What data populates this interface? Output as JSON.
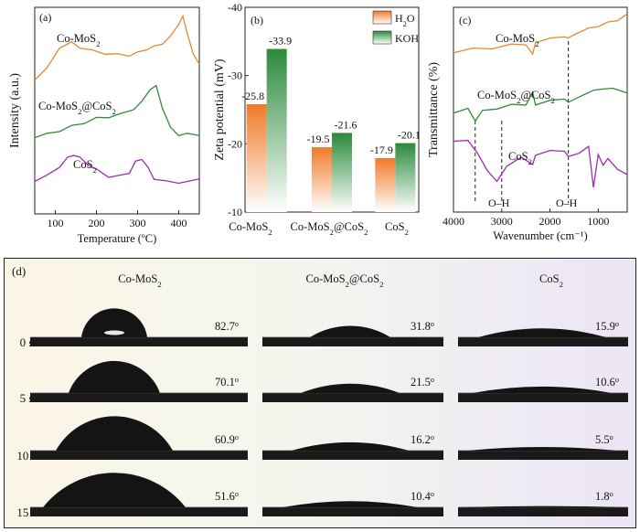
{
  "panel_a": {
    "label": "(a)",
    "chart_data": {
      "type": "line",
      "xlabel": "Temperature (ºC)",
      "ylabel": "Intensity (a.u.)",
      "xlim": [
        50,
        450
      ],
      "xticks": [
        "100",
        "200",
        "300",
        "400"
      ],
      "xtick_values": [
        100,
        200,
        300,
        400
      ],
      "series": [
        {
          "name": "Co-MoS2",
          "label_main": "Co-MoS",
          "label_sub": "2",
          "color": "#E6892E",
          "x": [
            50,
            80,
            110,
            140,
            160,
            190,
            220,
            250,
            280,
            300,
            320,
            340,
            360,
            380,
            400,
            410,
            420,
            435,
            450
          ],
          "y": [
            6.8,
            7.3,
            8.4,
            8.6,
            8.4,
            8.2,
            8.1,
            8.0,
            8.0,
            8.1,
            8.3,
            8.4,
            8.6,
            8.9,
            9.6,
            9.9,
            9.2,
            8.0,
            7.6
          ]
        },
        {
          "name": "Co-MoS2@CoS2",
          "label_main": "Co-MoS",
          "label_sub": "2",
          "label_mid": "@CoS",
          "label_sub2": "2",
          "color": "#2E8B3A",
          "x": [
            50,
            80,
            110,
            140,
            170,
            200,
            230,
            260,
            290,
            310,
            330,
            345,
            360,
            380,
            400,
            420,
            450
          ],
          "y": [
            3.9,
            4.0,
            4.2,
            4.4,
            4.6,
            4.8,
            4.9,
            5.0,
            5.3,
            5.6,
            6.3,
            6.4,
            5.4,
            4.3,
            4.0,
            4.0,
            4.0
          ]
        },
        {
          "name": "CoS2",
          "label_main": "CoS",
          "label_sub": "2",
          "color": "#A02AB0",
          "x": [
            50,
            80,
            110,
            130,
            145,
            160,
            180,
            200,
            230,
            260,
            280,
            295,
            310,
            325,
            340,
            370,
            400,
            450
          ],
          "y": [
            1.7,
            1.9,
            2.4,
            2.8,
            3.0,
            2.8,
            2.5,
            2.2,
            1.9,
            1.9,
            2.1,
            2.6,
            2.8,
            2.3,
            1.8,
            1.6,
            1.6,
            1.7
          ]
        }
      ]
    }
  },
  "panel_b": {
    "label": "(b)",
    "chart_data": {
      "type": "bar",
      "ylabel": "Zeta potential (mV)",
      "ylim": [
        -10,
        -40
      ],
      "yticks": [
        "-10",
        "-20",
        "-30",
        "-40"
      ],
      "ytick_values": [
        -10,
        -20,
        -30,
        -40
      ],
      "categories": [
        "Co-MoS2",
        "Co-MoS2@CoS2",
        "CoS2"
      ],
      "series": [
        {
          "name": "H2O",
          "legend_main": "H",
          "legend_sub": "2",
          "legend_end": "O",
          "color": "#F07A28",
          "values": [
            -25.8,
            -19.5,
            -17.9
          ],
          "labels": [
            "-25.8",
            "-19.5",
            "-17.9"
          ]
        },
        {
          "name": "KOH",
          "legend_main": "KOH",
          "color": "#2B8A3A",
          "values": [
            -33.9,
            -21.6,
            -20.1
          ],
          "labels": [
            "-33.9",
            "-21.6",
            "-20.1"
          ]
        }
      ]
    }
  },
  "panel_c": {
    "label": "(c)",
    "chart_data": {
      "type": "line",
      "xlabel": "Wavenumber (cm⁻¹)",
      "ylabel": "Transmittance (%)",
      "xlim": [
        4000,
        400
      ],
      "xticks": [
        "4000",
        "3000",
        "2000",
        "1000"
      ],
      "xtick_values": [
        4000,
        3000,
        2000,
        1000
      ],
      "annotations": [
        "O–H",
        "O–H"
      ],
      "series": [
        {
          "name": "Co-MoS2",
          "label_main": "Co-MoS",
          "label_sub": "2",
          "color": "#E6892E",
          "x": [
            4000,
            3600,
            3200,
            2800,
            2500,
            2360,
            2300,
            2000,
            1700,
            1620,
            1500,
            1200,
            1000,
            800,
            600,
            400
          ],
          "y": [
            8.0,
            8.1,
            8.2,
            8.3,
            8.4,
            7.8,
            8.5,
            8.6,
            8.8,
            8.6,
            8.9,
            9.1,
            9.3,
            9.4,
            9.6,
            9.8
          ]
        },
        {
          "name": "Co-MoS2@CoS2",
          "label_main": "Co-MoS",
          "label_sub": "2",
          "label_mid": "@CoS",
          "label_sub2": "2",
          "color": "#2E8B3A",
          "x": [
            4000,
            3700,
            3550,
            3400,
            3100,
            2800,
            2500,
            2360,
            2300,
            2000,
            1700,
            1620,
            1400,
            1100,
            900,
            700,
            400
          ],
          "y": [
            5.0,
            5.1,
            4.6,
            5.0,
            5.2,
            5.3,
            5.4,
            5.9,
            5.4,
            5.5,
            5.7,
            5.4,
            5.8,
            6.0,
            6.2,
            6.1,
            6.0
          ]
        },
        {
          "name": "CoS2",
          "label_main": "CoS",
          "label_sub": "2",
          "color": "#A02AB0",
          "x": [
            4000,
            3700,
            3500,
            3300,
            3100,
            2900,
            2600,
            2360,
            2300,
            2000,
            1700,
            1620,
            1400,
            1200,
            1100,
            1000,
            900,
            800,
            600,
            400
          ],
          "y": [
            3.6,
            3.5,
            3.0,
            2.0,
            1.6,
            2.2,
            2.8,
            2.3,
            2.9,
            3.0,
            3.1,
            2.7,
            3.0,
            3.2,
            1.3,
            2.8,
            2.4,
            2.6,
            2.2,
            1.8
          ]
        }
      ]
    }
  },
  "panel_d": {
    "label": "(d)",
    "columns": [
      {
        "title_main": "Co-MoS",
        "title_sub": "2",
        "title_rest": ""
      },
      {
        "title_main": "Co-MoS",
        "title_sub": "2",
        "title_mid": "@CoS",
        "title_sub2": "2"
      },
      {
        "title_main": "CoS",
        "title_sub": "2",
        "title_rest": ""
      }
    ],
    "rows": [
      "0 s",
      "5 s",
      "10 s",
      "15 s"
    ],
    "contact_angles": [
      [
        "82.7",
        "31.8",
        "15.9"
      ],
      [
        "70.1",
        "21.5",
        "10.6"
      ],
      [
        "60.9",
        "16.2",
        "5.5"
      ],
      [
        "51.6",
        "10.4",
        "1.8"
      ]
    ],
    "angle_values": [
      [
        82.7,
        31.8,
        15.9
      ],
      [
        70.1,
        21.5,
        10.6
      ],
      [
        60.9,
        16.2,
        5.5
      ],
      [
        51.6,
        10.4,
        1.8
      ]
    ],
    "degree_mark": "o"
  }
}
